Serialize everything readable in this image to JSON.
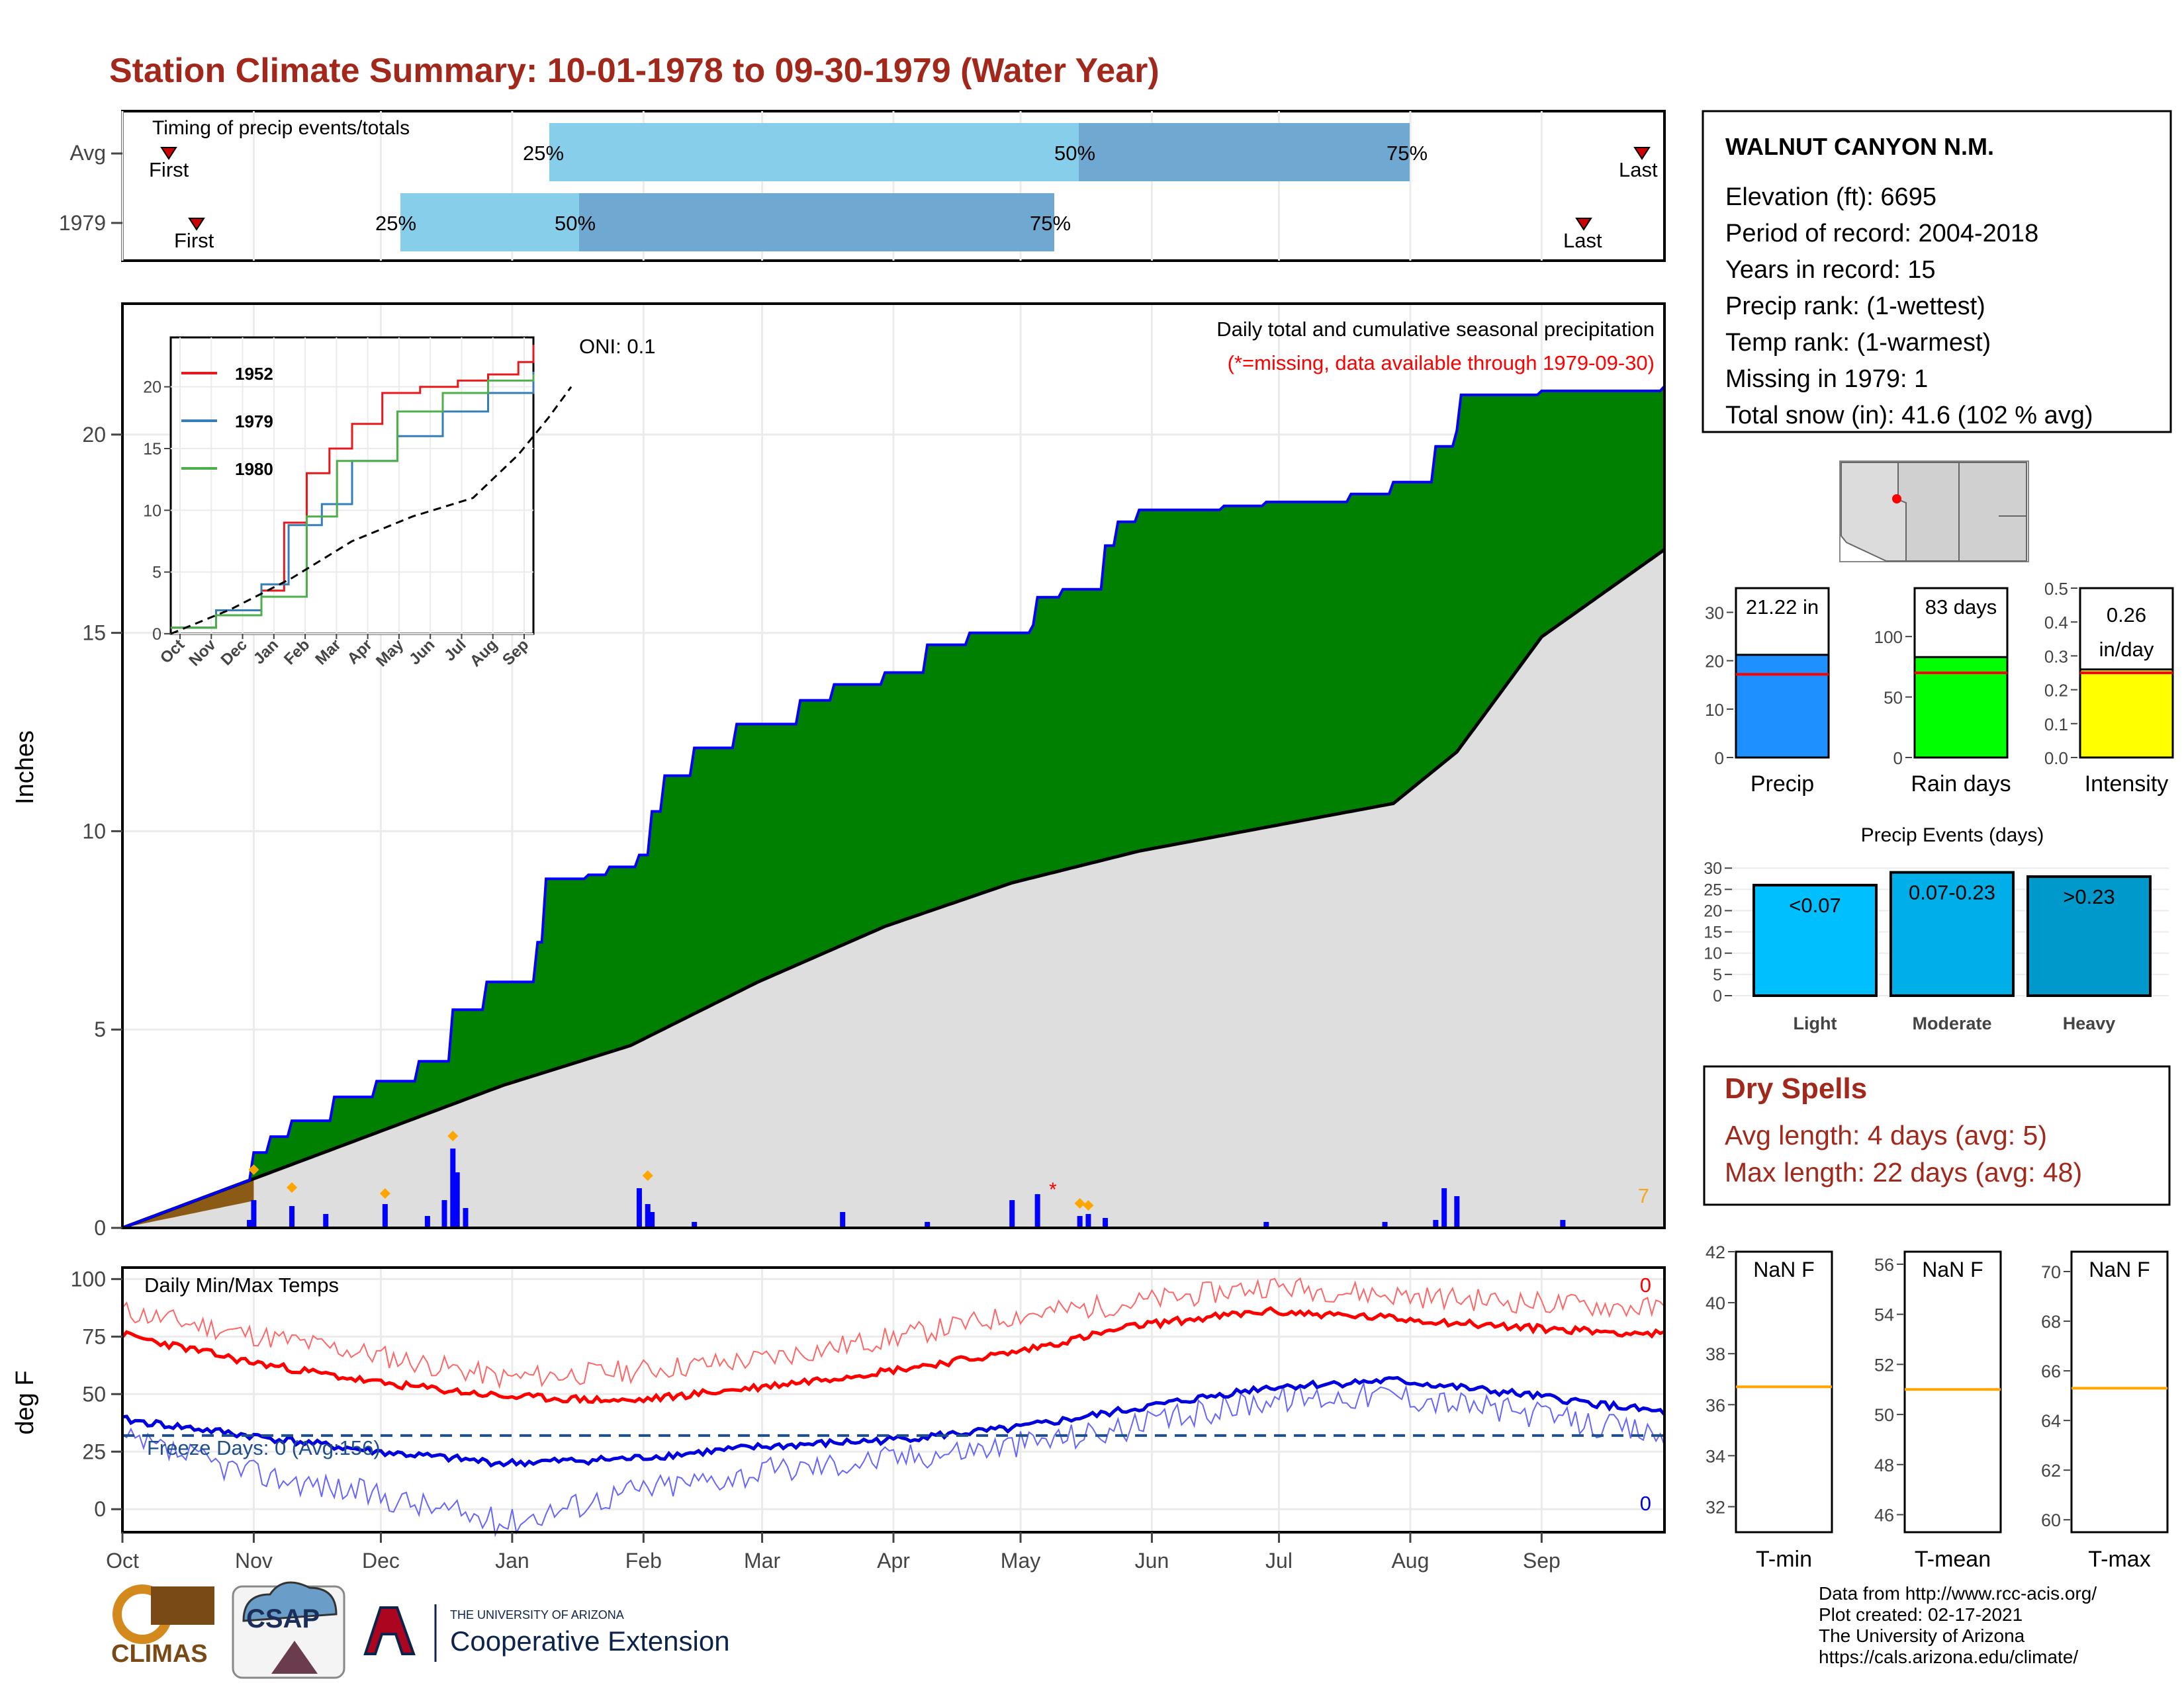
{
  "title": "Station Climate Summary: 10-01-1978 to 09-30-1979 (Water Year)",
  "timing": {
    "label": "Timing of precip events/totals",
    "rows": [
      "Avg",
      "1979"
    ],
    "first_label": "First",
    "last_label": "Last",
    "pct_labels": [
      "25%",
      "50%",
      "75%"
    ]
  },
  "main_panel": {
    "ylabel": "Inches",
    "oni": "ONI: 0.1",
    "subtitle": "Daily total and cumulative seasonal precipitation",
    "missing_note": "(*=missing, data available through 1979-09-30)",
    "count_label": "7",
    "yticks": [
      "0",
      "5",
      "10",
      "15",
      "20"
    ]
  },
  "inset": {
    "legend": [
      "1952",
      "1979",
      "1980"
    ],
    "yticks": [
      "0",
      "5",
      "10",
      "15",
      "20"
    ],
    "xticks": [
      "Oct",
      "Nov",
      "Dec",
      "Jan",
      "Feb",
      "Mar",
      "Apr",
      "May",
      "Jun",
      "Jul",
      "Aug",
      "Sep"
    ],
    "colors": [
      "#e41a1c",
      "#377eb8",
      "#4daf4a"
    ]
  },
  "temps_panel": {
    "label": "Daily Min/Max Temps",
    "ylabel": "deg F",
    "freeze": "Freeze Days: 0 (Avg:156)",
    "max_count": "0",
    "min_count": "0",
    "yticks": [
      "0",
      "25",
      "50",
      "75",
      "100"
    ]
  },
  "months": [
    "Oct",
    "Nov",
    "Dec",
    "Jan",
    "Feb",
    "Mar",
    "Apr",
    "May",
    "Jun",
    "Jul",
    "Aug",
    "Sep"
  ],
  "station": {
    "name": "WALNUT CANYON N.M.",
    "lines": [
      "Elevation (ft): 6695",
      "Period of record: 2004-2018",
      "Years in record: 15",
      "Precip rank:  (1-wettest)",
      "Temp rank:  (1-warmest)",
      "Missing in 1979: 1",
      "Total snow (in): 41.6 (102 % avg)"
    ]
  },
  "summary_bars": [
    {
      "label": "Precip",
      "value_text": "21.22 in",
      "value": 21.22,
      "avg": 17.2,
      "max": 35,
      "ticks": [
        "0",
        "10",
        "20",
        "30"
      ],
      "tick_vals": [
        0,
        10,
        20,
        30
      ],
      "color": "#1e90ff"
    },
    {
      "label": "Rain days",
      "value_text": "83 days",
      "value": 83,
      "avg": 70,
      "max": 140,
      "ticks": [
        "0",
        "50",
        "100"
      ],
      "tick_vals": [
        0,
        50,
        100
      ],
      "color": "#00ff00"
    },
    {
      "label": "Intensity",
      "value_text": "0.26 in/day",
      "value": 0.26,
      "avg": 0.25,
      "max": 0.5,
      "ticks": [
        "0.0",
        "0.1",
        "0.2",
        "0.3",
        "0.4",
        "0.5"
      ],
      "tick_vals": [
        0,
        0.1,
        0.2,
        0.3,
        0.4,
        0.5
      ],
      "color": "#ffff00"
    }
  ],
  "precip_events": {
    "title": "Precip Events (days)",
    "yticks": [
      "0",
      "5",
      "10",
      "15",
      "20",
      "25",
      "30"
    ],
    "bars": [
      {
        "category": "Light",
        "label": "<0.07",
        "value": 26,
        "color": "#00bfff"
      },
      {
        "category": "Moderate",
        "label": "0.07-0.23",
        "value": 29,
        "color": "#00afe8"
      },
      {
        "category": "Heavy",
        "label": ">0.23",
        "value": 28,
        "color": "#0099cc"
      }
    ]
  },
  "dry_spells": {
    "title": "Dry Spells",
    "avg": "Avg length: 4 days (avg: 5)",
    "max": "Max length: 22 days (avg: 48)"
  },
  "temp_boxes": [
    {
      "label": "T-min",
      "value_text": "NaN F",
      "ticks": [
        "32",
        "34",
        "36",
        "38",
        "40",
        "42"
      ],
      "min": 31,
      "max": 42,
      "avg": 36.7
    },
    {
      "label": "T-mean",
      "value_text": "NaN F",
      "ticks": [
        "46",
        "48",
        "50",
        "52",
        "54",
        "56"
      ],
      "min": 45.3,
      "max": 56.5,
      "avg": 51.0
    },
    {
      "label": "T-max",
      "value_text": "NaN F",
      "ticks": [
        "60",
        "62",
        "64",
        "66",
        "68",
        "70"
      ],
      "min": 59.5,
      "max": 70.8,
      "avg": 65.3
    }
  ],
  "logos": [
    "CLIMAS",
    "CSAP",
    "THE UNIVERSITY OF ARIZONA",
    "Cooperative Extension"
  ],
  "credits": [
    "Data from http://www.rcc-acis.org/",
    "Plot created: 02-17-2021",
    "The University of Arizona",
    "https://cals.arizona.edu/climate/"
  ],
  "chart_data": {
    "type": "area",
    "title": "Station Climate Summary: 10-01-1978 to 09-30-1979 (Water Year)",
    "subtitle": "Daily total and cumulative seasonal precipitation",
    "xlabel": "",
    "ylabel": "Inches",
    "ylim": [
      0,
      23.3
    ],
    "x_months": [
      "Oct",
      "Nov",
      "Dec",
      "Jan",
      "Feb",
      "Mar",
      "Apr",
      "May",
      "Jun",
      "Jul",
      "Aug",
      "Sep"
    ],
    "cumulative_1979": [
      [
        0,
        0
      ],
      [
        30,
        1.2
      ],
      [
        31,
        1.9
      ],
      [
        35,
        2.3
      ],
      [
        40,
        2.7
      ],
      [
        50,
        3.3
      ],
      [
        60,
        3.7
      ],
      [
        70,
        4.2
      ],
      [
        78,
        5.5
      ],
      [
        86,
        6.2
      ],
      [
        98,
        7.2
      ],
      [
        100,
        8.8
      ],
      [
        110,
        8.9
      ],
      [
        115,
        9.1
      ],
      [
        122,
        9.4
      ],
      [
        125,
        10.5
      ],
      [
        128,
        11.4
      ],
      [
        135,
        12.1
      ],
      [
        145,
        12.7
      ],
      [
        160,
        13.3
      ],
      [
        168,
        13.7
      ],
      [
        180,
        14.0
      ],
      [
        190,
        14.7
      ],
      [
        200,
        15.0
      ],
      [
        215,
        15.2
      ],
      [
        216,
        15.9
      ],
      [
        222,
        16.1
      ],
      [
        232,
        17.2
      ],
      [
        235,
        17.8
      ],
      [
        240,
        18.1
      ],
      [
        260,
        18.2
      ],
      [
        270,
        18.3
      ],
      [
        290,
        18.5
      ],
      [
        300,
        18.8
      ],
      [
        310,
        19.7
      ],
      [
        315,
        20.1
      ],
      [
        316,
        21.0
      ],
      [
        335,
        21.1
      ],
      [
        364,
        21.22
      ]
    ],
    "average_cumulative": [
      [
        0,
        0
      ],
      [
        30,
        1.2
      ],
      [
        60,
        2.4
      ],
      [
        90,
        3.6
      ],
      [
        120,
        4.6
      ],
      [
        150,
        6.2
      ],
      [
        180,
        7.6
      ],
      [
        210,
        8.7
      ],
      [
        240,
        9.5
      ],
      [
        270,
        10.1
      ],
      [
        300,
        10.7
      ],
      [
        315,
        12.0
      ],
      [
        335,
        14.9
      ],
      [
        364,
        17.1
      ]
    ],
    "daily_precip": [
      [
        30,
        0.2
      ],
      [
        31,
        0.7
      ],
      [
        40,
        0.55
      ],
      [
        48,
        0.35
      ],
      [
        62,
        0.6
      ],
      [
        72,
        0.3
      ],
      [
        76,
        0.7
      ],
      [
        78,
        2.0
      ],
      [
        79,
        1.4
      ],
      [
        81,
        0.5
      ],
      [
        122,
        1.0
      ],
      [
        124,
        0.6
      ],
      [
        125,
        0.4
      ],
      [
        135,
        0.15
      ],
      [
        170,
        0.4
      ],
      [
        190,
        0.15
      ],
      [
        210,
        0.7
      ],
      [
        216,
        0.85
      ],
      [
        226,
        0.3
      ],
      [
        228,
        0.35
      ],
      [
        232,
        0.25
      ],
      [
        270,
        0.15
      ],
      [
        298,
        0.15
      ],
      [
        310,
        0.2
      ],
      [
        312,
        1.0
      ],
      [
        315,
        0.8
      ],
      [
        340,
        0.2
      ]
    ],
    "inset_series": [
      {
        "name": "1952",
        "points": [
          [
            0,
            0.5
          ],
          [
            30,
            1.5
          ],
          [
            60,
            3.5
          ],
          [
            75,
            9
          ],
          [
            90,
            13
          ],
          [
            105,
            15
          ],
          [
            120,
            17
          ],
          [
            140,
            19.5
          ],
          [
            165,
            20
          ],
          [
            190,
            20.5
          ],
          [
            210,
            21
          ],
          [
            230,
            22
          ],
          [
            240,
            23.4
          ]
        ]
      },
      {
        "name": "1979",
        "points": [
          [
            0,
            0.5
          ],
          [
            30,
            1.9
          ],
          [
            60,
            4.0
          ],
          [
            78,
            8.8
          ],
          [
            100,
            10.5
          ],
          [
            120,
            14
          ],
          [
            150,
            16
          ],
          [
            180,
            18
          ],
          [
            210,
            19.5
          ],
          [
            240,
            21.22
          ]
        ]
      },
      {
        "name": "1980",
        "points": [
          [
            0,
            0.5
          ],
          [
            30,
            1.5
          ],
          [
            60,
            3.0
          ],
          [
            90,
            9.5
          ],
          [
            110,
            14
          ],
          [
            150,
            18
          ],
          [
            180,
            19.5
          ],
          [
            210,
            20.5
          ],
          [
            240,
            21.0
          ]
        ]
      },
      {
        "name": "",
        "points": [
          [
            0,
            0
          ],
          [
            40,
            2
          ],
          [
            80,
            4.5
          ],
          [
            120,
            7.5
          ],
          [
            160,
            9.5
          ],
          [
            200,
            11
          ],
          [
            230,
            14.5
          ],
          [
            250,
            17.5
          ],
          [
            265,
            20
          ]
        ]
      }
    ],
    "temps": {
      "max_avg": [
        [
          0,
          76
        ],
        [
          30,
          64
        ],
        [
          60,
          55
        ],
        [
          90,
          49
        ],
        [
          120,
          47
        ],
        [
          150,
          53
        ],
        [
          180,
          60
        ],
        [
          210,
          68
        ],
        [
          240,
          80
        ],
        [
          270,
          86
        ],
        [
          300,
          83
        ],
        [
          330,
          79
        ],
        [
          364,
          76
        ]
      ],
      "max_daily": [
        [
          0,
          86
        ],
        [
          30,
          76
        ],
        [
          60,
          67
        ],
        [
          90,
          57
        ],
        [
          120,
          60
        ],
        [
          150,
          65
        ],
        [
          180,
          74
        ],
        [
          210,
          84
        ],
        [
          240,
          90
        ],
        [
          270,
          97
        ],
        [
          300,
          93
        ],
        [
          330,
          90
        ],
        [
          364,
          87
        ]
      ],
      "min_avg": [
        [
          0,
          39
        ],
        [
          30,
          32
        ],
        [
          60,
          25
        ],
        [
          90,
          20
        ],
        [
          120,
          22
        ],
        [
          150,
          27
        ],
        [
          180,
          30
        ],
        [
          210,
          35
        ],
        [
          240,
          44
        ],
        [
          270,
          53
        ],
        [
          300,
          56
        ],
        [
          330,
          50
        ],
        [
          364,
          42
        ]
      ],
      "min_daily": [
        [
          0,
          30
        ],
        [
          30,
          16
        ],
        [
          60,
          6
        ],
        [
          90,
          -6
        ],
        [
          120,
          8
        ],
        [
          150,
          16
        ],
        [
          180,
          22
        ],
        [
          210,
          28
        ],
        [
          240,
          36
        ],
        [
          270,
          48
        ],
        [
          300,
          50
        ],
        [
          330,
          42
        ],
        [
          364,
          32
        ]
      ],
      "freeze_line": 32,
      "ylim": [
        -10,
        105
      ]
    }
  }
}
